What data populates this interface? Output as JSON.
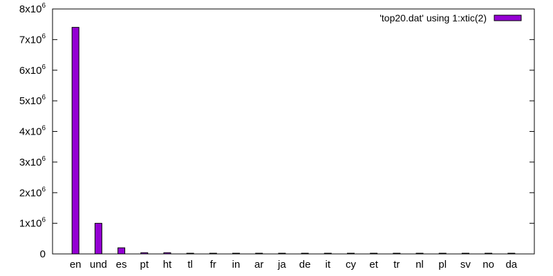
{
  "chart_data": {
    "type": "bar",
    "categories": [
      "en",
      "und",
      "es",
      "pt",
      "ht",
      "tl",
      "fr",
      "in",
      "ar",
      "ja",
      "de",
      "it",
      "cy",
      "et",
      "tr",
      "nl",
      "pl",
      "sv",
      "no",
      "da"
    ],
    "series": [
      {
        "name": "'top20.dat' using 1:xtic(2)",
        "color": "#9400d3",
        "values": [
          7400000,
          1000000,
          200000,
          40000,
          40000,
          20000,
          20000,
          15000,
          15000,
          15000,
          10000,
          5000,
          5000,
          4000,
          4000,
          3000,
          3000,
          3000,
          2000,
          2000
        ]
      }
    ],
    "ylim": [
      0,
      8000000
    ],
    "yticks": [
      {
        "value": 0,
        "mantissa": "0",
        "exp": ""
      },
      {
        "value": 1000000,
        "mantissa": "1x10",
        "exp": "6"
      },
      {
        "value": 2000000,
        "mantissa": "2x10",
        "exp": "6"
      },
      {
        "value": 3000000,
        "mantissa": "3x10",
        "exp": "6"
      },
      {
        "value": 4000000,
        "mantissa": "4x10",
        "exp": "6"
      },
      {
        "value": 5000000,
        "mantissa": "5x10",
        "exp": "6"
      },
      {
        "value": 6000000,
        "mantissa": "6x10",
        "exp": "6"
      },
      {
        "value": 7000000,
        "mantissa": "7x10",
        "exp": "6"
      },
      {
        "value": 8000000,
        "mantissa": "8x10",
        "exp": "6"
      }
    ],
    "legend_position": "top-right",
    "grid": false,
    "title": "",
    "xlabel": "",
    "ylabel": ""
  }
}
